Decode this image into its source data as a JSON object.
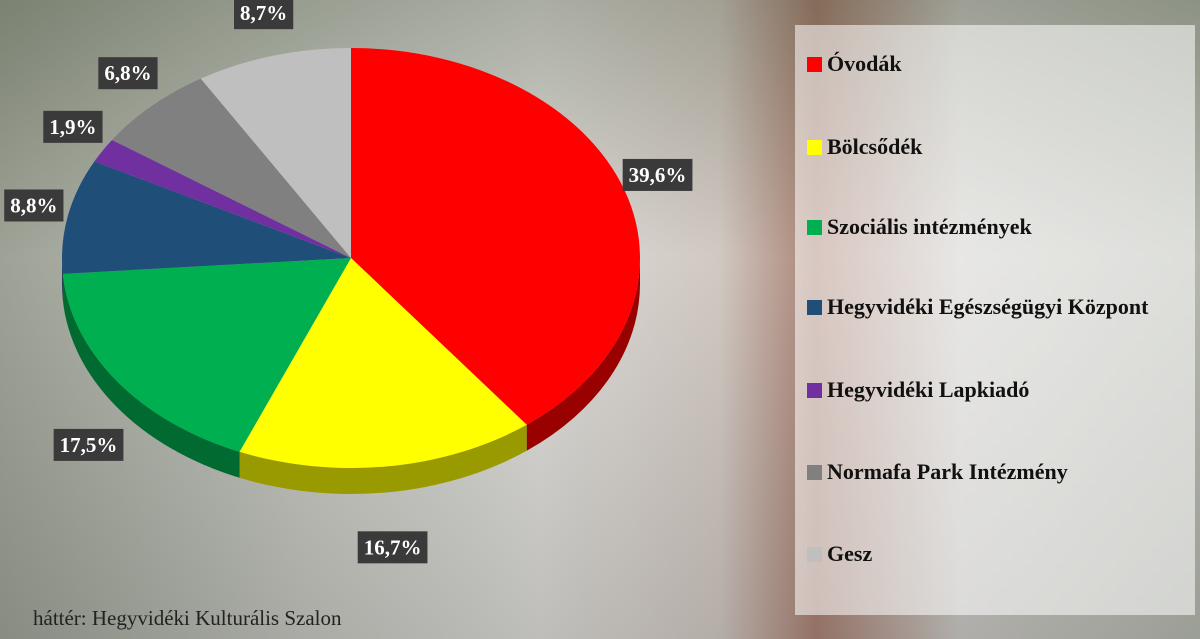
{
  "chart_data": {
    "type": "pie",
    "categories": [
      "Óvodák",
      "Bölcsődék",
      "Szociális intézmények",
      "Hegyvidéki Egészségügyi Központ",
      "Hegyvidéki Lapkiadó",
      "Normafa Park Intézmény",
      "Gesz"
    ],
    "values": [
      39.6,
      16.7,
      17.5,
      8.8,
      1.9,
      6.8,
      8.7
    ],
    "value_labels": [
      "39,6%",
      "16,7%",
      "17,5%",
      "8,8%",
      "1,9%",
      "6,8%",
      "8,7%"
    ],
    "colors": [
      "#ff0000",
      "#ffff00",
      "#00b050",
      "#1f4e79",
      "#7030a0",
      "#808080",
      "#bfbfbf"
    ],
    "legend": "right",
    "note": "háttér: Hegyvidéki Kulturális Szalon"
  }
}
